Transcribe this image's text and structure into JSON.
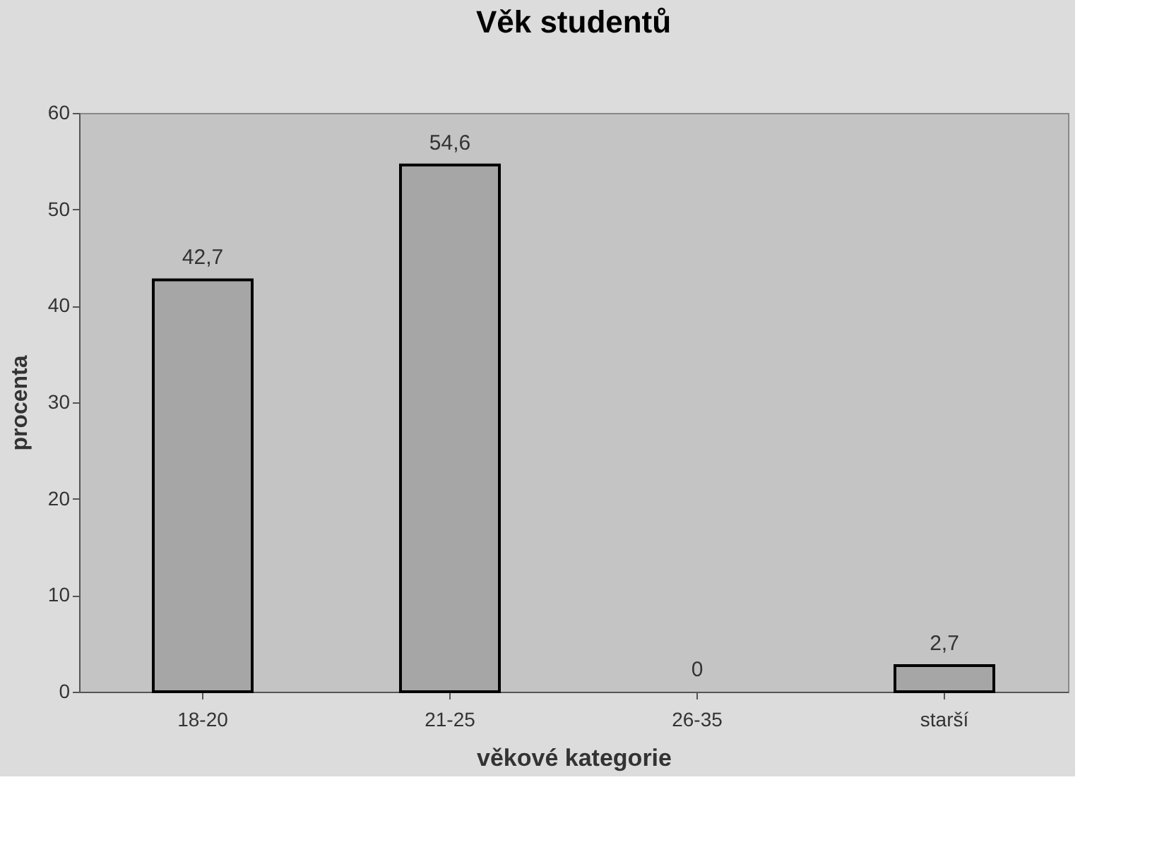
{
  "chart_data": {
    "type": "bar",
    "title": "Věk studentů",
    "xlabel": "věkové kategorie",
    "ylabel": "procenta",
    "categories": [
      "18-20",
      "21-25",
      "26-35",
      "starší"
    ],
    "values": [
      42.7,
      54.6,
      0,
      2.7
    ],
    "value_labels": [
      "42,7",
      "54,6",
      "0",
      "2,7"
    ],
    "color": "#a6a6a6",
    "ylim": [
      0,
      60
    ],
    "yticks": [
      0,
      10,
      20,
      30,
      40,
      50,
      60
    ],
    "grid": false
  }
}
